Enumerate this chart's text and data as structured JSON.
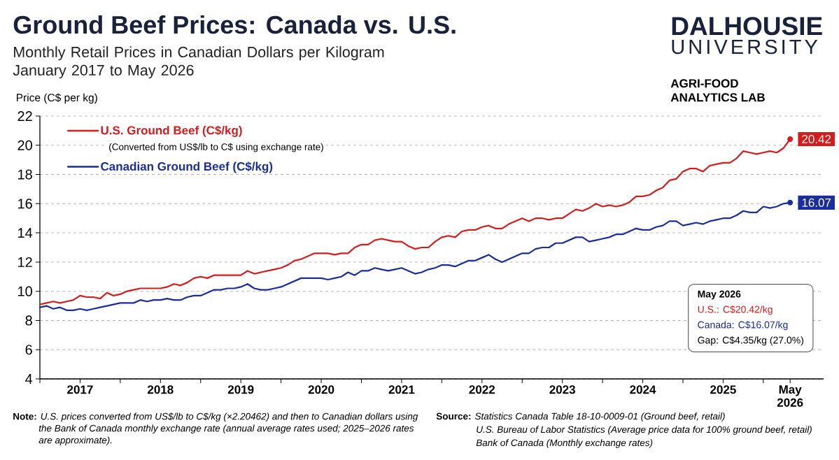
{
  "chart_data": {
    "type": "line",
    "title": "Ground Beef Prices: Canada vs. U.S.",
    "subtitle": "Monthly Retail Prices in Canadian Dollars per Kilogram January 2017 to May 2026",
    "ylabel": "Price (C$ per kg)",
    "x": [
      "2017-01",
      "2017-02",
      "2017-03",
      "2017-04",
      "2017-05",
      "2017-06",
      "2017-07",
      "2017-08",
      "2017-09",
      "2017-10",
      "2017-11",
      "2017-12",
      "2018-01",
      "2018-02",
      "2018-03",
      "2018-04",
      "2018-05",
      "2018-06",
      "2018-07",
      "2018-08",
      "2018-09",
      "2018-10",
      "2018-11",
      "2018-12",
      "2019-01",
      "2019-02",
      "2019-03",
      "2019-04",
      "2019-05",
      "2019-06",
      "2019-07",
      "2019-08",
      "2019-09",
      "2019-10",
      "2019-11",
      "2019-12",
      "2020-01",
      "2020-02",
      "2020-03",
      "2020-04",
      "2020-05",
      "2020-06",
      "2020-07",
      "2020-08",
      "2020-09",
      "2020-10",
      "2020-11",
      "2020-12",
      "2021-01",
      "2021-02",
      "2021-03",
      "2021-04",
      "2021-05",
      "2021-06",
      "2021-07",
      "2021-08",
      "2021-09",
      "2021-10",
      "2021-11",
      "2021-12",
      "2022-01",
      "2022-02",
      "2022-03",
      "2022-04",
      "2022-05",
      "2022-06",
      "2022-07",
      "2022-08",
      "2022-09",
      "2022-10",
      "2022-11",
      "2022-12",
      "2023-01",
      "2023-02",
      "2023-03",
      "2023-04",
      "2023-05",
      "2023-06",
      "2023-07",
      "2023-08",
      "2023-09",
      "2023-10",
      "2023-11",
      "2023-12",
      "2024-01",
      "2024-02",
      "2024-03",
      "2024-04",
      "2024-05",
      "2024-06",
      "2024-07",
      "2024-08",
      "2024-09",
      "2024-10",
      "2024-11",
      "2024-12",
      "2025-01",
      "2025-02",
      "2025-03",
      "2025-04",
      "2025-05",
      "2025-06",
      "2025-07",
      "2025-08",
      "2025-09",
      "2025-10",
      "2025-11",
      "2025-12",
      "2026-01",
      "2026-02",
      "2026-03",
      "2026-04",
      "2026-05"
    ],
    "series": [
      {
        "name": "U.S. Ground Beef (C$/kg)",
        "color": "#d41c1c",
        "values": [
          9.1,
          9.2,
          9.3,
          9.2,
          9.3,
          9.4,
          9.7,
          9.6,
          9.6,
          9.5,
          9.9,
          9.7,
          9.8,
          10.0,
          10.1,
          10.2,
          10.2,
          10.2,
          10.2,
          10.3,
          10.5,
          10.4,
          10.6,
          10.9,
          11.0,
          10.9,
          11.1,
          11.1,
          11.1,
          11.1,
          11.1,
          11.4,
          11.2,
          11.3,
          11.4,
          11.5,
          11.6,
          11.8,
          12.1,
          12.2,
          12.4,
          12.6,
          12.6,
          12.6,
          12.5,
          12.6,
          12.6,
          13.0,
          13.2,
          13.2,
          13.5,
          13.6,
          13.5,
          13.4,
          13.4,
          13.1,
          12.9,
          13.0,
          13.0,
          13.4,
          13.7,
          13.8,
          13.7,
          14.1,
          14.2,
          14.2,
          14.4,
          14.5,
          14.3,
          14.3,
          14.6,
          14.8,
          15.0,
          14.8,
          15.0,
          15.0,
          14.9,
          15.0,
          15.0,
          15.3,
          15.6,
          15.5,
          15.7,
          16.0,
          15.8,
          15.9,
          15.8,
          15.9,
          16.1,
          16.5,
          16.5,
          16.6,
          16.9,
          17.1,
          17.6,
          17.7,
          18.2,
          18.4,
          18.4,
          18.2,
          18.6,
          18.7,
          18.8,
          18.8,
          19.1,
          19.6,
          19.5,
          19.4,
          19.5,
          19.6,
          19.5,
          19.8,
          20.42
        ]
      },
      {
        "name": "Canadian Ground Beef (C$/kg)",
        "color": "#1a2d9c",
        "values": [
          8.9,
          9.0,
          8.8,
          8.9,
          8.7,
          8.7,
          8.8,
          8.7,
          8.8,
          8.9,
          9.0,
          9.1,
          9.2,
          9.2,
          9.2,
          9.4,
          9.3,
          9.4,
          9.4,
          9.5,
          9.4,
          9.4,
          9.6,
          9.7,
          9.7,
          9.9,
          10.1,
          10.1,
          10.2,
          10.2,
          10.3,
          10.5,
          10.2,
          10.1,
          10.1,
          10.2,
          10.3,
          10.5,
          10.7,
          10.9,
          10.9,
          10.9,
          10.9,
          10.8,
          10.9,
          11.0,
          11.3,
          11.1,
          11.4,
          11.4,
          11.6,
          11.5,
          11.4,
          11.5,
          11.6,
          11.4,
          11.2,
          11.3,
          11.5,
          11.6,
          11.8,
          11.8,
          11.7,
          11.9,
          12.1,
          12.1,
          12.3,
          12.5,
          12.2,
          12.0,
          12.2,
          12.4,
          12.6,
          12.6,
          12.9,
          13.0,
          13.0,
          13.3,
          13.3,
          13.5,
          13.7,
          13.7,
          13.4,
          13.5,
          13.6,
          13.7,
          13.9,
          13.9,
          14.1,
          14.3,
          14.2,
          14.2,
          14.4,
          14.5,
          14.8,
          14.8,
          14.5,
          14.6,
          14.7,
          14.6,
          14.8,
          14.9,
          15.0,
          15.0,
          15.2,
          15.5,
          15.4,
          15.4,
          15.8,
          15.7,
          15.8,
          16.0,
          16.07
        ]
      }
    ],
    "xlim": [
      "2017-01",
      "2026-10"
    ],
    "xticks": [
      {
        "value": "2017-01",
        "label": null
      },
      {
        "value": "2017-07",
        "label": "2017"
      },
      {
        "value": "2018-01",
        "label": null
      },
      {
        "value": "2018-07",
        "label": "2018"
      },
      {
        "value": "2019-01",
        "label": null
      },
      {
        "value": "2019-07",
        "label": "2019"
      },
      {
        "value": "2020-01",
        "label": null
      },
      {
        "value": "2020-07",
        "label": "2020"
      },
      {
        "value": "2021-01",
        "label": null
      },
      {
        "value": "2021-07",
        "label": "2021"
      },
      {
        "value": "2022-01",
        "label": null
      },
      {
        "value": "2022-07",
        "label": "2022"
      },
      {
        "value": "2023-01",
        "label": null
      },
      {
        "value": "2023-07",
        "label": "2023"
      },
      {
        "value": "2024-01",
        "label": null
      },
      {
        "value": "2024-07",
        "label": "2024"
      },
      {
        "value": "2025-01",
        "label": null
      },
      {
        "value": "2025-07",
        "label": "2025"
      },
      {
        "value": "2026-01",
        "label": null
      },
      {
        "value": "2026-05",
        "label": "May 2026"
      }
    ],
    "ylim": [
      4,
      22
    ],
    "yticks": [
      4,
      6,
      8,
      10,
      12,
      14,
      16,
      18,
      20,
      22
    ],
    "grid": "y",
    "legend": "top left",
    "annotations": [
      "DALHOUSIE",
      "UNIVERSITY",
      "AGRI-FOOD ANALYTICS LAB",
      "(Converted from US$/lb to C$ using exchange rate)",
      {
        "text": "20.42",
        "x": "2026-05",
        "y": 20.42
      },
      {
        "text": "16.07",
        "x": "2026-05",
        "y": 16.07
      },
      "May 2026",
      "U.S.: C$20.42/kg",
      "Canada: C$16.07/kg",
      "Gap: C$4.35/kg (27.0%)",
      "**Note:** *U.S. prices converted from US$/lb to C$/kg (×2.20462) and then to Canadian dollars using the Bank of Canada monthly exchange rate (annual average rates used; 2025–2026 rates are approximate).*",
      "**Source:** *Statistics Canada Table 18-10-0009-01 (Ground beef, retail)*",
      "U.S. Bureau of Labor Statistics (Average price data for 100% ground beef, retail)",
      "Bank of Canada (Monthly exchange rates)"
    ]
  }
}
